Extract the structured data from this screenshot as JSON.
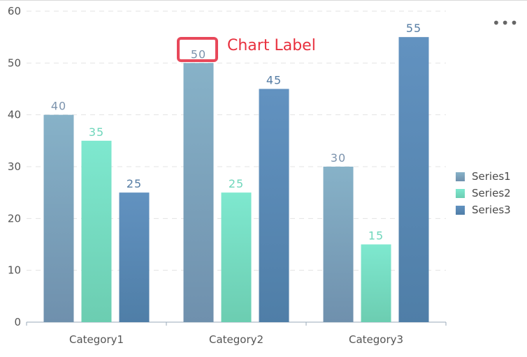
{
  "chart_data": {
    "type": "bar",
    "categories": [
      "Category1",
      "Category2",
      "Category3"
    ],
    "series": [
      {
        "name": "Series1",
        "values": [
          40,
          50,
          30
        ],
        "color_top": "#87b2c8",
        "color_bottom": "#6f90ad",
        "label_color": "#7c93ad"
      },
      {
        "name": "Series2",
        "values": [
          35,
          25,
          15
        ],
        "color_top": "#7ee8cf",
        "color_bottom": "#6ccdb1",
        "label_color": "#6fd6bb"
      },
      {
        "name": "Series3",
        "values": [
          25,
          45,
          55
        ],
        "color_top": "#6292c0",
        "color_bottom": "#4f7ea7",
        "label_color": "#567da4"
      }
    ],
    "ylim": [
      0,
      60
    ],
    "yticks": [
      0,
      10,
      20,
      30,
      40,
      50,
      60
    ],
    "grid": true,
    "legend_position": "right"
  },
  "annotation": {
    "text": "Chart Label",
    "color": "#e8303e"
  },
  "toolbar": {
    "more_glyph": "•••"
  }
}
